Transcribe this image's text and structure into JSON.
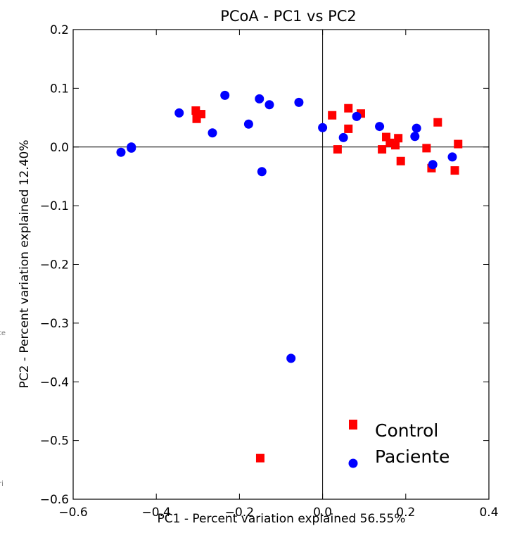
{
  "chart_data": {
    "type": "scatter",
    "title": "PCoA - PC1 vs PC2",
    "xlabel": "PC1 - Percent variation explained 56.55%",
    "ylabel": "PC2 - Percent variation explained 12.40%",
    "xlim": [
      -0.6,
      0.4
    ],
    "ylim": [
      -0.6,
      0.2
    ],
    "xticks": [
      -0.6,
      -0.4,
      -0.2,
      0.0,
      0.2,
      0.4
    ],
    "yticks": [
      0.2,
      0.1,
      0.0,
      -0.1,
      -0.2,
      -0.3,
      -0.4,
      -0.5,
      -0.6
    ],
    "xtick_labels": [
      "−0.6",
      "−0.4",
      "−0.2",
      "0.0",
      "0.2",
      "0.4"
    ],
    "ytick_labels": [
      "0.2",
      "0.1",
      "0.0",
      "−0.1",
      "−0.2",
      "−0.3",
      "−0.4",
      "−0.5",
      "−0.6"
    ],
    "reference_lines": {
      "x": 0,
      "y": 0
    },
    "grid": false,
    "legend_position": "bottom-right",
    "series": [
      {
        "name": "Control",
        "marker": "square",
        "color": "#ff0000",
        "points": [
          [
            -0.305,
            0.062
          ],
          [
            -0.303,
            0.048
          ],
          [
            -0.292,
            0.056
          ],
          [
            -0.15,
            -0.53
          ],
          [
            0.023,
            0.054
          ],
          [
            0.036,
            -0.004
          ],
          [
            0.062,
            0.066
          ],
          [
            0.062,
            0.031
          ],
          [
            0.092,
            0.057
          ],
          [
            0.143,
            -0.004
          ],
          [
            0.153,
            0.017
          ],
          [
            0.162,
            0.007
          ],
          [
            0.175,
            0.003
          ],
          [
            0.182,
            0.015
          ],
          [
            0.188,
            -0.024
          ],
          [
            0.25,
            -0.002
          ],
          [
            0.262,
            -0.036
          ],
          [
            0.277,
            0.042
          ],
          [
            0.318,
            -0.04
          ],
          [
            0.326,
            0.005
          ]
        ]
      },
      {
        "name": "Paciente",
        "marker": "circle",
        "color": "#0000ff",
        "points": [
          [
            -0.485,
            -0.009
          ],
          [
            -0.46,
            -0.002
          ],
          [
            -0.46,
            0.0
          ],
          [
            -0.345,
            0.058
          ],
          [
            -0.265,
            0.024
          ],
          [
            -0.235,
            0.088
          ],
          [
            -0.178,
            0.039
          ],
          [
            -0.152,
            0.082
          ],
          [
            -0.146,
            -0.042
          ],
          [
            -0.128,
            0.072
          ],
          [
            -0.076,
            -0.36
          ],
          [
            -0.057,
            0.076
          ],
          [
            0.0,
            0.033
          ],
          [
            0.05,
            0.016
          ],
          [
            0.082,
            0.052
          ],
          [
            0.137,
            0.035
          ],
          [
            0.222,
            0.018
          ],
          [
            0.226,
            0.032
          ],
          [
            0.265,
            -0.03
          ],
          [
            0.312,
            -0.017
          ]
        ]
      }
    ]
  },
  "edge_fragments": [
    "te",
    "ri"
  ]
}
